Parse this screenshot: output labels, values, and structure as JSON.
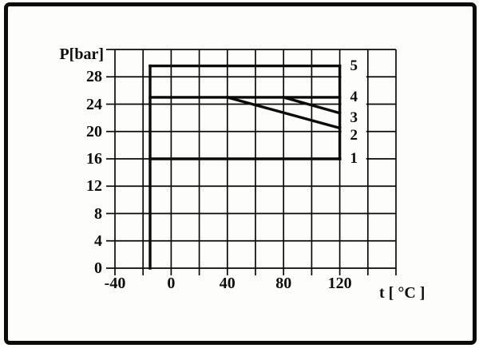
{
  "figure": {
    "background_color": "#fdfdfb",
    "frame_color": "#0b0b0b",
    "ink_color": "#111111"
  },
  "chart_data": {
    "type": "line",
    "title": "",
    "xlabel": "t [ °C ]",
    "ylabel": "P[bar]",
    "xlim": [
      -40,
      160
    ],
    "ylim": [
      0,
      32
    ],
    "x_grid_step": 20,
    "y_grid_step": 4,
    "grid": true,
    "x_tick_values": [
      -40,
      0,
      40,
      80,
      120
    ],
    "x_tick_labels": [
      "-40",
      "0",
      "40",
      "80",
      "120"
    ],
    "y_tick_values": [
      0,
      4,
      8,
      12,
      16,
      20,
      24,
      28
    ],
    "y_tick_labels": [
      "0",
      "4",
      "8",
      "12",
      "16",
      "20",
      "24",
      "28"
    ],
    "line_color": "#0a0a0a",
    "series": [
      {
        "name": "curve-1",
        "label": "1",
        "label_p": 16.0,
        "points": [
          [
            -15,
            16
          ],
          [
            120,
            16
          ]
        ]
      },
      {
        "name": "curve-2",
        "label": "2",
        "label_p": 19.4,
        "points": [
          [
            40,
            25
          ],
          [
            120,
            20.5
          ]
        ]
      },
      {
        "name": "curve-3",
        "label": "3",
        "label_p": 21.9,
        "points": [
          [
            80,
            25
          ],
          [
            120,
            22.7
          ]
        ]
      },
      {
        "name": "curve-4",
        "label": "4",
        "label_p": 25.0,
        "points": [
          [
            -15,
            25
          ],
          [
            120,
            25
          ]
        ]
      },
      {
        "name": "curve-5",
        "label": "5",
        "label_p": 29.6,
        "points": [
          [
            -15,
            29.6
          ],
          [
            120,
            29.6
          ]
        ]
      },
      {
        "name": "boundary-left",
        "label": "",
        "label_p": null,
        "points": [
          [
            -15,
            0
          ],
          [
            -15,
            29.6
          ]
        ]
      },
      {
        "name": "boundary-right",
        "label": "",
        "label_p": null,
        "points": [
          [
            120,
            16
          ],
          [
            120,
            29.6
          ]
        ]
      }
    ],
    "label_column": {
      "x_range": [
        120,
        140
      ],
      "p_range": [
        12.7,
        32
      ],
      "note": "white strip over grid holding curve number labels"
    },
    "legend_position": "none"
  }
}
